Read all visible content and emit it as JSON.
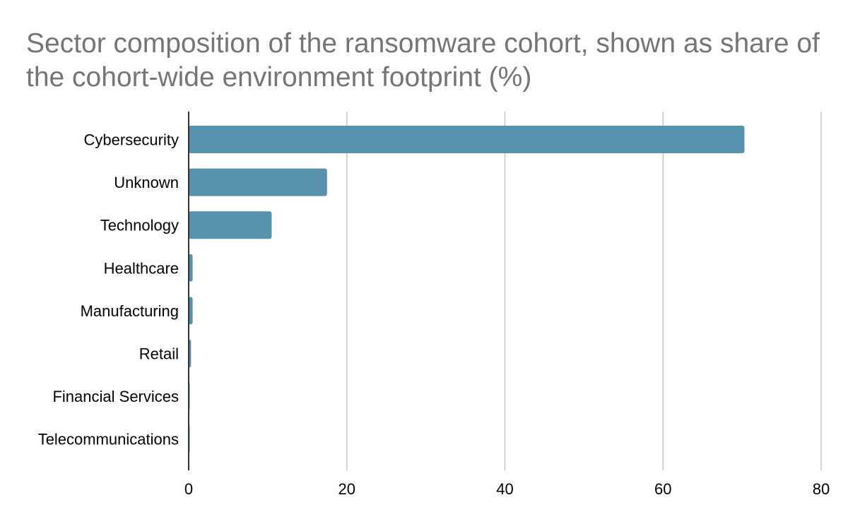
{
  "chart_data": {
    "type": "bar",
    "orientation": "horizontal",
    "title": "Sector composition of the ransomware cohort, shown as share of the cohort-wide environment footprint (%)",
    "xlabel": "",
    "ylabel": "",
    "categories": [
      "Cybersecurity",
      "Unknown",
      "Technology",
      "Healthcare",
      "Manufacturing",
      "Retail",
      "Financial Services",
      "Telecommunications"
    ],
    "values": [
      70.3,
      17.5,
      10.5,
      0.5,
      0.5,
      0.3,
      0.1,
      0.1
    ],
    "xlim": [
      0,
      80
    ],
    "xticks": [
      "0",
      "20",
      "40",
      "60",
      "80"
    ],
    "tick_values": [
      0,
      20,
      40,
      60,
      80
    ],
    "grid": true,
    "legend": "none",
    "bar_color": "#5891ae"
  }
}
